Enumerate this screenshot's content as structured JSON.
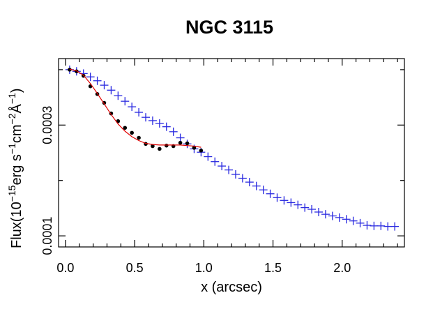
{
  "chart_data": {
    "type": "scatter",
    "title": "NGC 3115",
    "xlabel": "x (arcsec)",
    "ylabel": {
      "prefix": "Flux(10",
      "exp1": "−15",
      "mid1": "erg s",
      "exp2": "−1",
      "mid2": "cm",
      "exp3": "−2",
      "mid3": "Å",
      "exp4": "−1",
      "suffix": ")"
    },
    "xlim": [
      -0.05,
      2.45
    ],
    "ylim": [
      8e-05,
      0.00042
    ],
    "x_ticks": [
      0.0,
      0.5,
      1.0,
      1.5,
      2.0
    ],
    "x_tick_labels": [
      "0.0",
      "0.5",
      "1.0",
      "1.5",
      "2.0"
    ],
    "x_minor_ticks": [
      0.1,
      0.2,
      0.3,
      0.4,
      0.6,
      0.7,
      0.8,
      0.9,
      1.1,
      1.2,
      1.3,
      1.4,
      1.6,
      1.7,
      1.8,
      1.9,
      2.1,
      2.2,
      2.3,
      2.4
    ],
    "y_ticks": [
      0.0001,
      0.0003
    ],
    "y_tick_labels": [
      "0.0001",
      "0.0003"
    ],
    "y_minor_ticks": [
      0.0002,
      0.0004
    ],
    "series": [
      {
        "name": "blue crosses",
        "marker": "plus",
        "color": "#2a2ae0",
        "x": [
          0.03,
          0.08,
          0.13,
          0.18,
          0.23,
          0.28,
          0.33,
          0.38,
          0.43,
          0.48,
          0.53,
          0.58,
          0.63,
          0.68,
          0.73,
          0.78,
          0.83,
          0.88,
          0.93,
          0.98,
          1.03,
          1.08,
          1.13,
          1.18,
          1.23,
          1.28,
          1.33,
          1.38,
          1.43,
          1.48,
          1.53,
          1.58,
          1.63,
          1.68,
          1.73,
          1.78,
          1.83,
          1.88,
          1.93,
          1.98,
          2.03,
          2.08,
          2.13,
          2.18,
          2.23,
          2.28,
          2.33,
          2.38
        ],
        "y": [
          0.0004,
          0.000397,
          0.000393,
          0.000387,
          0.00038,
          0.000372,
          0.000363,
          0.000353,
          0.000343,
          0.000333,
          0.000323,
          0.000314,
          0.000308,
          0.000303,
          0.000297,
          0.000288,
          0.000277,
          0.000266,
          0.000257,
          0.000251,
          0.000243,
          0.000234,
          0.000226,
          0.000219,
          0.000211,
          0.000204,
          0.000197,
          0.00019,
          0.000183,
          0.000176,
          0.000169,
          0.000164,
          0.00016,
          0.000156,
          0.000151,
          0.000148,
          0.000143,
          0.000139,
          0.000136,
          0.000133,
          0.00013,
          0.000127,
          0.000123,
          0.000119,
          0.000118,
          0.000118,
          0.000117,
          0.000117
        ]
      },
      {
        "name": "black points",
        "marker": "dot",
        "color": "#000000",
        "x": [
          0.03,
          0.08,
          0.13,
          0.18,
          0.23,
          0.28,
          0.33,
          0.38,
          0.43,
          0.48,
          0.53,
          0.58,
          0.63,
          0.68,
          0.73,
          0.78,
          0.83,
          0.88,
          0.93,
          0.98
        ],
        "y": [
          0.0004,
          0.000397,
          0.000389,
          0.00037,
          0.000356,
          0.00034,
          0.000321,
          0.000307,
          0.000295,
          0.000286,
          0.000277,
          0.000266,
          0.000262,
          0.000257,
          0.000263,
          0.000262,
          0.000268,
          0.000267,
          0.000259,
          0.000254
        ]
      },
      {
        "name": "fit",
        "marker": "line",
        "color": "#e00000",
        "x": [
          0.03,
          0.08,
          0.13,
          0.18,
          0.23,
          0.28,
          0.33,
          0.38,
          0.43,
          0.48,
          0.53,
          0.58,
          0.63,
          0.68,
          0.73,
          0.78,
          0.83,
          0.88,
          0.93,
          0.98
        ],
        "y": [
          0.000401,
          0.000398,
          0.00039,
          0.000375,
          0.000357,
          0.000338,
          0.000319,
          0.000302,
          0.000289,
          0.000279,
          0.000272,
          0.000267,
          0.000265,
          0.000264,
          0.000264,
          0.000264,
          0.000264,
          0.000263,
          0.000262,
          0.00026
        ]
      }
    ]
  }
}
